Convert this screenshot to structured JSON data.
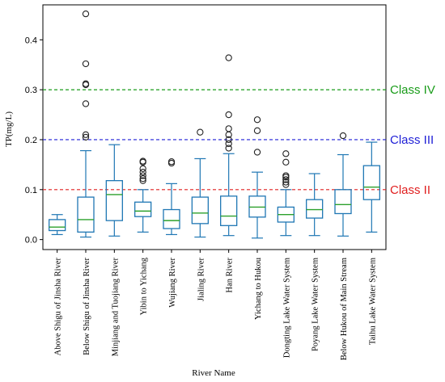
{
  "chart_data": {
    "type": "box",
    "xlabel": "River Name",
    "ylabel": "TP(mg/L)",
    "ylim": [
      -0.02,
      0.47
    ],
    "yticks": [
      "0.0",
      "0.1",
      "0.2",
      "0.3",
      "0.4"
    ],
    "ytick_values": [
      0.0,
      0.1,
      0.2,
      0.3,
      0.4
    ],
    "box_color": "#1f77b4",
    "median_color": "#2ca02c",
    "categories": [
      "Above Shigu of Jinsha River",
      "Below Shigu of Jinsha River",
      "Minjiang and Tuojiang River",
      "Yibin to Yichang",
      "Wujiang River",
      "Jialing River",
      "Han River",
      "Yichang to Hukou",
      "Dongting Lake Water System",
      "Poyang Lake Water System",
      "Below Hukou of Main Stream",
      "Taihu Lake Water System"
    ],
    "boxes": [
      {
        "whisker_low": 0.01,
        "q1": 0.018,
        "median": 0.025,
        "q3": 0.04,
        "whisker_high": 0.05,
        "outliers": []
      },
      {
        "whisker_low": 0.005,
        "q1": 0.015,
        "median": 0.04,
        "q3": 0.085,
        "whisker_high": 0.178,
        "outliers": [
          0.205,
          0.21,
          0.272,
          0.31,
          0.312,
          0.352,
          0.452
        ]
      },
      {
        "whisker_low": 0.007,
        "q1": 0.038,
        "median": 0.09,
        "q3": 0.118,
        "whisker_high": 0.19,
        "outliers": []
      },
      {
        "whisker_low": 0.015,
        "q1": 0.046,
        "median": 0.057,
        "q3": 0.075,
        "whisker_high": 0.1,
        "outliers": [
          0.118,
          0.122,
          0.128,
          0.135,
          0.142,
          0.155,
          0.157
        ]
      },
      {
        "whisker_low": 0.01,
        "q1": 0.022,
        "median": 0.038,
        "q3": 0.06,
        "whisker_high": 0.112,
        "outliers": [
          0.153,
          0.156
        ]
      },
      {
        "whisker_low": 0.005,
        "q1": 0.032,
        "median": 0.053,
        "q3": 0.085,
        "whisker_high": 0.162,
        "outliers": [
          0.215
        ]
      },
      {
        "whisker_low": 0.008,
        "q1": 0.028,
        "median": 0.047,
        "q3": 0.087,
        "whisker_high": 0.172,
        "outliers": [
          0.183,
          0.192,
          0.2,
          0.21,
          0.222,
          0.25,
          0.364
        ]
      },
      {
        "whisker_low": 0.003,
        "q1": 0.045,
        "median": 0.065,
        "q3": 0.087,
        "whisker_high": 0.135,
        "outliers": [
          0.175,
          0.218,
          0.24
        ]
      },
      {
        "whisker_low": 0.008,
        "q1": 0.035,
        "median": 0.05,
        "q3": 0.065,
        "whisker_high": 0.1,
        "outliers": [
          0.11,
          0.115,
          0.12,
          0.125,
          0.128,
          0.155,
          0.172
        ]
      },
      {
        "whisker_low": 0.008,
        "q1": 0.043,
        "median": 0.06,
        "q3": 0.08,
        "whisker_high": 0.132,
        "outliers": []
      },
      {
        "whisker_low": 0.007,
        "q1": 0.052,
        "median": 0.07,
        "q3": 0.1,
        "whisker_high": 0.17,
        "outliers": [
          0.208
        ]
      },
      {
        "whisker_low": 0.015,
        "q1": 0.08,
        "median": 0.105,
        "q3": 0.148,
        "whisker_high": 0.195,
        "outliers": []
      }
    ],
    "reference_lines": [
      {
        "label": "Class IV",
        "value": 0.3,
        "color": "#1a9c1a"
      },
      {
        "label": "Class III",
        "value": 0.2,
        "color": "#1f1fd6"
      },
      {
        "label": "Class II",
        "value": 0.1,
        "color": "#e02020"
      }
    ]
  }
}
